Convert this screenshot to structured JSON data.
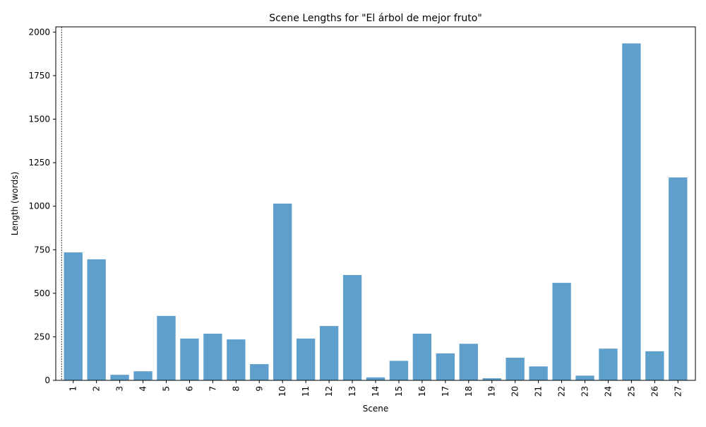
{
  "chart_data": {
    "type": "bar",
    "title": "Scene Lengths for \"El árbol de mejor fruto\"",
    "xlabel": "Scene",
    "ylabel": "Length (words)",
    "ylim": [
      0,
      2030
    ],
    "yticks": [
      0,
      250,
      500,
      750,
      1000,
      1250,
      1500,
      1750,
      2000
    ],
    "categories": [
      "1",
      "2",
      "3",
      "4",
      "5",
      "6",
      "7",
      "8",
      "9",
      "10",
      "11",
      "12",
      "13",
      "14",
      "15",
      "16",
      "17",
      "18",
      "19",
      "20",
      "21",
      "22",
      "23",
      "24",
      "25",
      "26",
      "27"
    ],
    "values": [
      735,
      695,
      32,
      52,
      370,
      240,
      268,
      235,
      93,
      1015,
      240,
      312,
      605,
      17,
      112,
      268,
      155,
      210,
      12,
      130,
      80,
      560,
      27,
      182,
      1935,
      167,
      1165
    ],
    "bar_color": "#5f9fcc",
    "reference_line": {
      "x": 0,
      "style": "dotted",
      "color": "#000000"
    },
    "grid": false,
    "legend": "none"
  }
}
